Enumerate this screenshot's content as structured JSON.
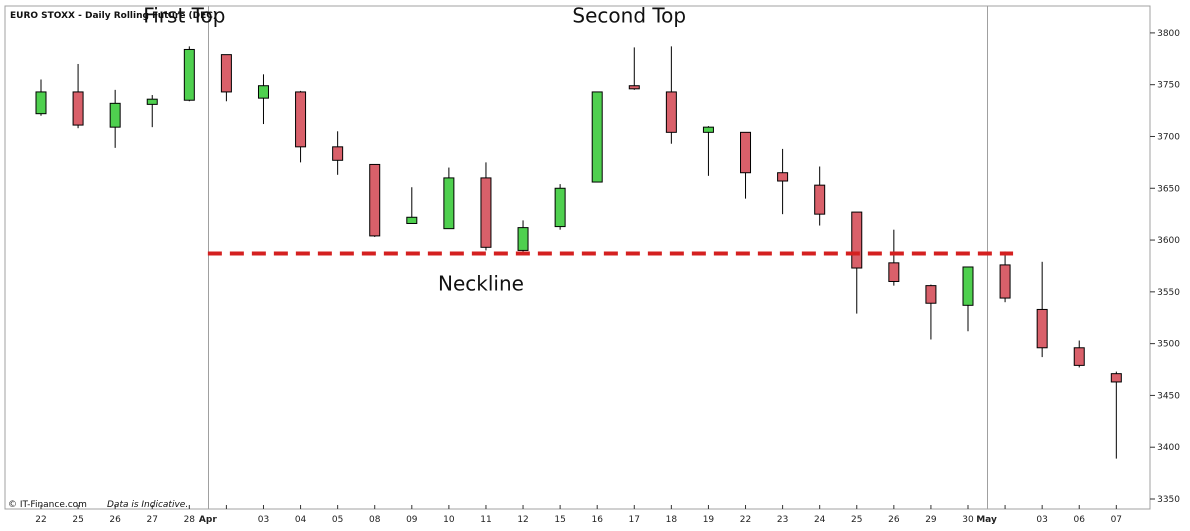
{
  "chart_data": {
    "type": "candlestick",
    "title": "EURO STOXX - Daily Rolling Future (DEC)",
    "ylim": [
      3350,
      3825
    ],
    "yticks": [
      3350,
      3400,
      3450,
      3500,
      3550,
      3600,
      3650,
      3700,
      3750,
      3800
    ],
    "month_markers": [
      "Apr",
      "May"
    ],
    "candles": [
      {
        "label": "22",
        "open": 3722,
        "high": 3755,
        "low": 3720,
        "close": 3743
      },
      {
        "label": "25",
        "open": 3743,
        "high": 3770,
        "low": 3708,
        "close": 3711
      },
      {
        "label": "26",
        "open": 3709,
        "high": 3745,
        "low": 3689,
        "close": 3732
      },
      {
        "label": "27",
        "open": 3731,
        "high": 3740,
        "low": 3709,
        "close": 3736
      },
      {
        "label": "28",
        "open": 3735,
        "high": 3787,
        "low": 3734,
        "close": 3784
      },
      {
        "label": "Apr",
        "open": 3779,
        "high": 3779,
        "low": 3734,
        "close": 3743
      },
      {
        "label": "03",
        "open": 3737,
        "high": 3760,
        "low": 3712,
        "close": 3749
      },
      {
        "label": "04",
        "open": 3743,
        "high": 3744,
        "low": 3675,
        "close": 3690
      },
      {
        "label": "05",
        "open": 3690,
        "high": 3705,
        "low": 3663,
        "close": 3677
      },
      {
        "label": "08",
        "open": 3673,
        "high": 3673,
        "low": 3603,
        "close": 3604
      },
      {
        "label": "09",
        "open": 3616,
        "high": 3651,
        "low": 3616,
        "close": 3622
      },
      {
        "label": "10",
        "open": 3611,
        "high": 3670,
        "low": 3611,
        "close": 3660
      },
      {
        "label": "11",
        "open": 3660,
        "high": 3675,
        "low": 3590,
        "close": 3593
      },
      {
        "label": "12",
        "open": 3590,
        "high": 3619,
        "low": 3589,
        "close": 3612
      },
      {
        "label": "15",
        "open": 3613,
        "high": 3654,
        "low": 3610,
        "close": 3650
      },
      {
        "label": "16",
        "open": 3656,
        "high": 3743,
        "low": 3656,
        "close": 3743
      },
      {
        "label": "17",
        "open": 3749,
        "high": 3786,
        "low": 3745,
        "close": 3746
      },
      {
        "label": "18",
        "open": 3743,
        "high": 3787,
        "low": 3693,
        "close": 3704
      },
      {
        "label": "19",
        "open": 3704,
        "high": 3710,
        "low": 3662,
        "close": 3709
      },
      {
        "label": "22",
        "open": 3704,
        "high": 3704,
        "low": 3640,
        "close": 3665
      },
      {
        "label": "23",
        "open": 3665,
        "high": 3688,
        "low": 3625,
        "close": 3657
      },
      {
        "label": "24",
        "open": 3653,
        "high": 3671,
        "low": 3614,
        "close": 3625
      },
      {
        "label": "25",
        "open": 3627,
        "high": 3627,
        "low": 3529,
        "close": 3573
      },
      {
        "label": "26",
        "open": 3578,
        "high": 3610,
        "low": 3556,
        "close": 3560
      },
      {
        "label": "29",
        "open": 3556,
        "high": 3557,
        "low": 3504,
        "close": 3539
      },
      {
        "label": "30",
        "open": 3537,
        "high": 3574,
        "low": 3512,
        "close": 3574
      },
      {
        "label": "May",
        "open": 3576,
        "high": 3589,
        "low": 3540,
        "close": 3544
      },
      {
        "label": "03",
        "open": 3533,
        "high": 3579,
        "low": 3487,
        "close": 3496
      },
      {
        "label": "06",
        "open": 3496,
        "high": 3503,
        "low": 3477,
        "close": 3479
      },
      {
        "label": "07",
        "open": 3471,
        "high": 3473,
        "low": 3389,
        "close": 3463
      }
    ],
    "neckline": {
      "value": 3587,
      "from_index": 5,
      "to_index": 26
    },
    "annotations": [
      {
        "text": "First Top",
        "at_index": 4,
        "y": 3817
      },
      {
        "text": "Second Top",
        "at_index": 16,
        "y": 3817
      },
      {
        "text": "Neckline",
        "at_index": 12,
        "y": 3558
      }
    ],
    "footer": {
      "source": "© IT-Finance.com",
      "note": "Data is Indicative."
    },
    "colors": {
      "up": "#4fd04f",
      "down": "#d9606a",
      "wick": "#000000",
      "neckline": "#d42020",
      "background": "#ffffff",
      "frame": "#a0a0a0",
      "month_line": "#a0a0a0"
    }
  }
}
